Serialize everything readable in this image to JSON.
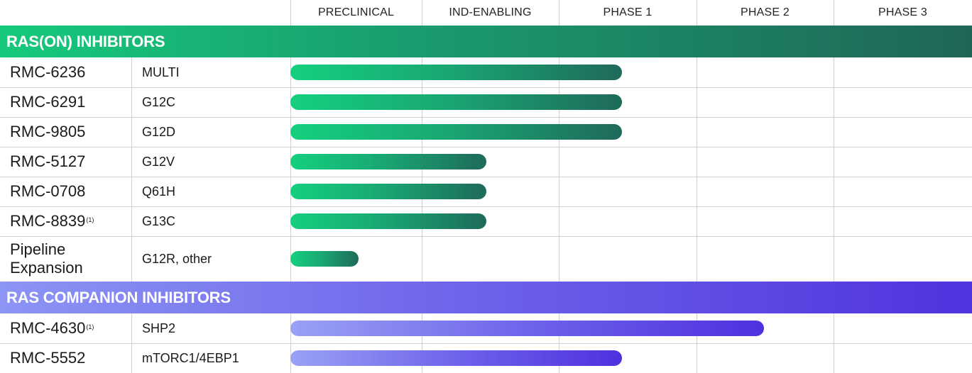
{
  "colors": {
    "ras_on_start": "#14d07e",
    "ras_on_end": "#1e6a5a",
    "companion_start": "#9aa1f5",
    "companion_end": "#4f30de",
    "grid": "#d2d2d2"
  },
  "chart_data": {
    "type": "bar",
    "phases": [
      "PRECLINICAL",
      "IND-ENABLING",
      "PHASE 1",
      "PHASE 2",
      "PHASE 3"
    ],
    "groups": [
      {
        "title": "RAS(ON) INHIBITORS",
        "rows": [
          {
            "name": "RMC-6236",
            "sup": "",
            "target": "MULTI",
            "progress": 2.46
          },
          {
            "name": "RMC-6291",
            "sup": "",
            "target": "G12C",
            "progress": 2.46
          },
          {
            "name": "RMC-9805",
            "sup": "",
            "target": "G12D",
            "progress": 2.46
          },
          {
            "name": "RMC-5127",
            "sup": "",
            "target": "G12V",
            "progress": 1.47
          },
          {
            "name": "RMC-0708",
            "sup": "",
            "target": "Q61H",
            "progress": 1.47
          },
          {
            "name": "RMC-8839",
            "sup": "(1)",
            "target": "G13C",
            "progress": 1.47
          },
          {
            "name": "Pipeline\nExpansion",
            "sup": "",
            "target": "G12R, other",
            "progress": 0.52
          }
        ]
      },
      {
        "title": "RAS COMPANION INHIBITORS",
        "rows": [
          {
            "name": "RMC-4630",
            "sup": "(1)",
            "target": "SHP2",
            "progress": 3.49
          },
          {
            "name": "RMC-5552",
            "sup": "",
            "target": "mTORC1/4EBP1",
            "progress": 2.46
          }
        ]
      }
    ]
  }
}
